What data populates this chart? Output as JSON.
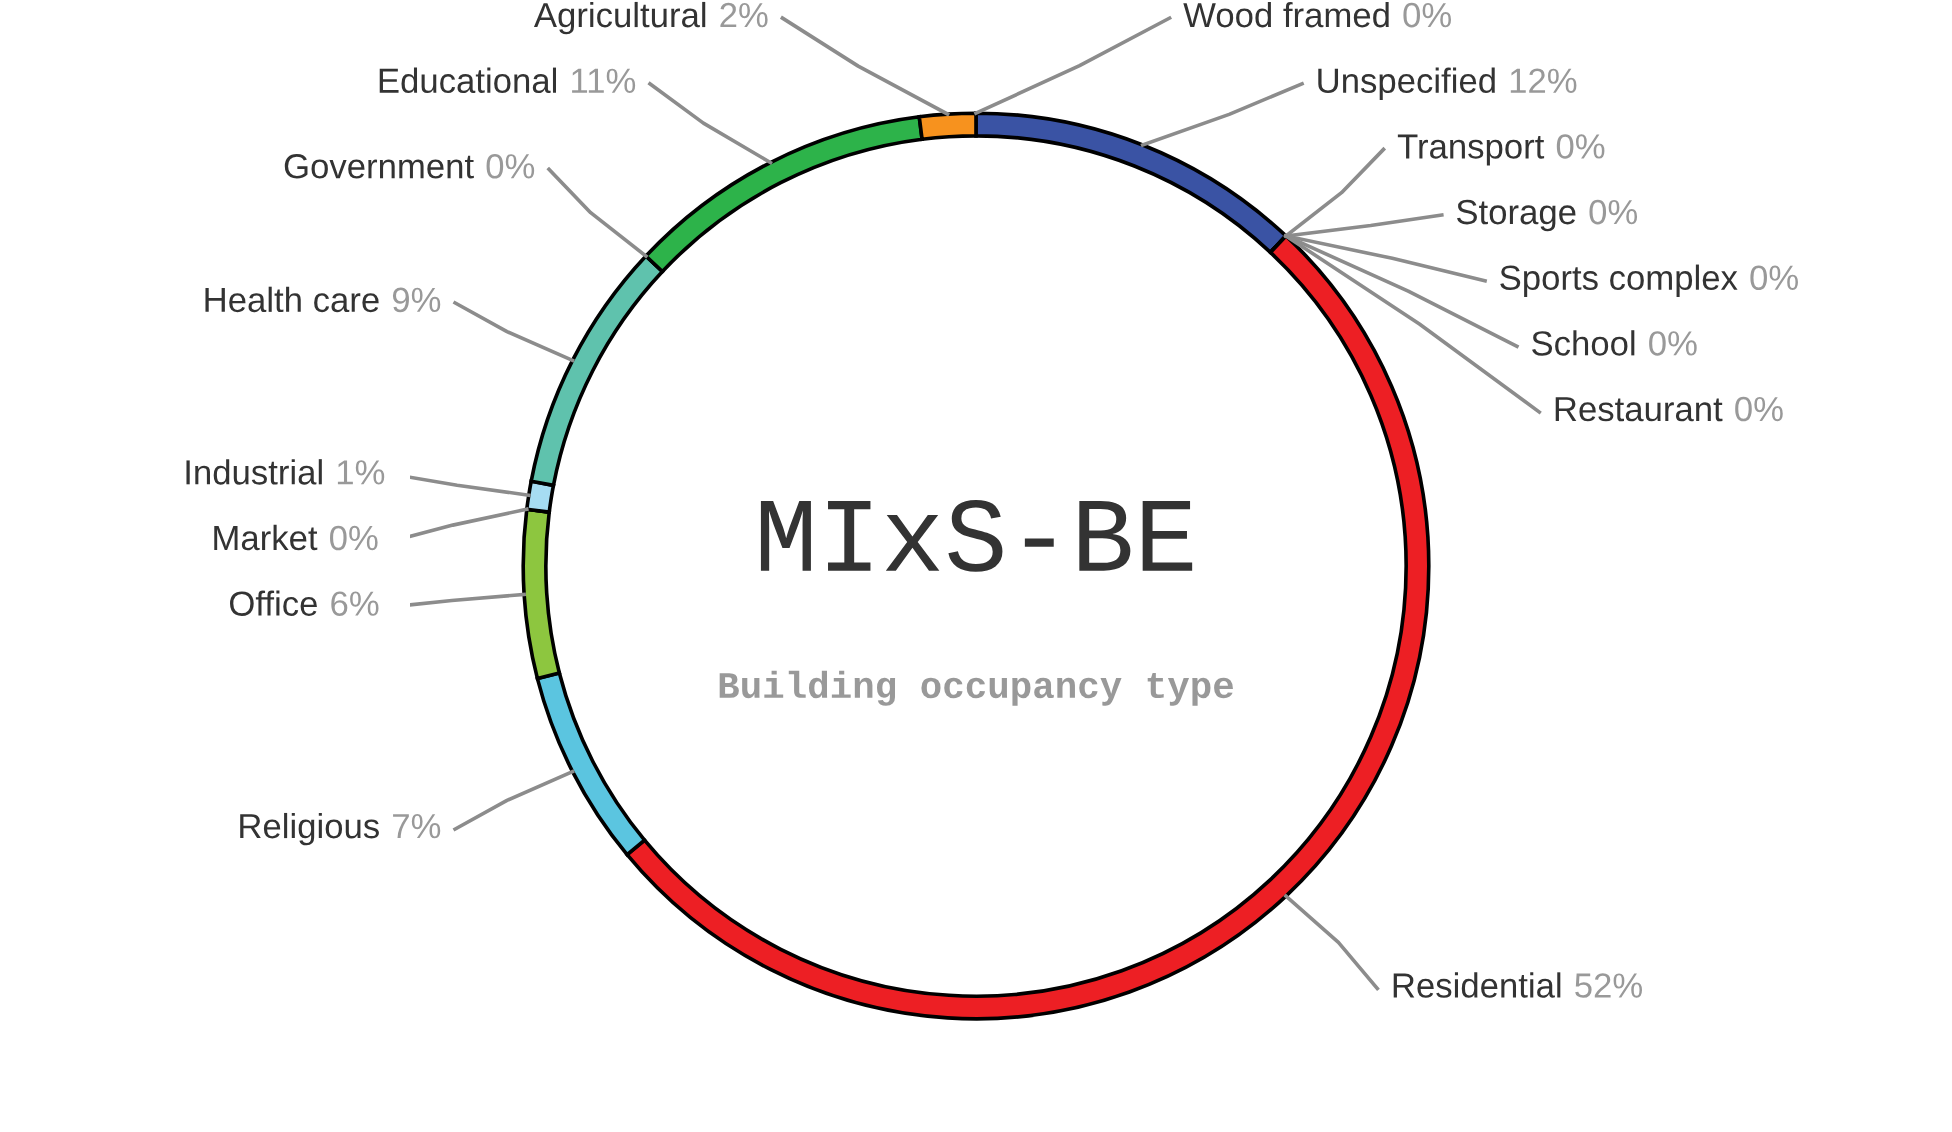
{
  "chart_data": {
    "type": "donut",
    "title": "MIxS-BE",
    "subtitle": "Building occupancy type",
    "categories": [
      "Wood framed",
      "Unspecified",
      "Transport",
      "Storage",
      "Sports complex",
      "School",
      "Restaurant",
      "Residential",
      "Religious",
      "Office",
      "Market",
      "Industrial",
      "Health care",
      "Government",
      "Educational",
      "Agricultural"
    ],
    "values": [
      0,
      12,
      0,
      0,
      0,
      0,
      0,
      52,
      7,
      6,
      0,
      1,
      9,
      0,
      11,
      2
    ],
    "value_labels": [
      "0%",
      "12%",
      "0%",
      "0%",
      "0%",
      "0%",
      "0%",
      "52%",
      "7%",
      "6%",
      "0%",
      "1%",
      "9%",
      "0%",
      "11%",
      "2%"
    ],
    "colors": [
      "#8b5a2b",
      "#3a53a4",
      "#231f20",
      "#f7921e",
      "#ed1f24",
      "#ed1f24",
      "#ed1f24",
      "#ed1f24",
      "#5bc5e0",
      "#8dc63f",
      "#8dc63f",
      "#a6dcf2",
      "#5fc2ad",
      "#2db34a",
      "#2db34a",
      "#f7921e"
    ]
  }
}
